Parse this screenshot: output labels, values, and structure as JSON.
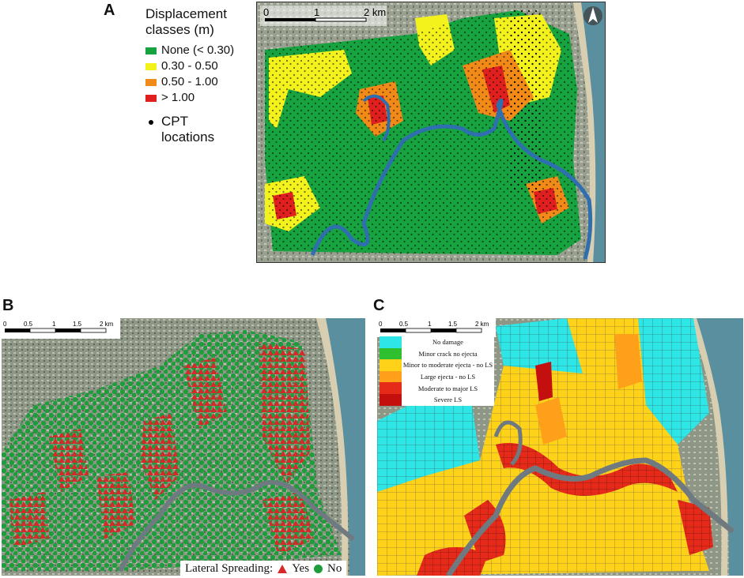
{
  "panels": {
    "a": {
      "letter": "A",
      "legend_title_line1": "Displacement",
      "legend_title_line2": "classes (m)",
      "classes": [
        {
          "label": "None (< 0.30)",
          "color": "#16a340"
        },
        {
          "label": "0.30 - 0.50",
          "color": "#f4f21c"
        },
        {
          "label": "0.50 - 1.00",
          "color": "#f28a17"
        },
        {
          "label": "> 1.00",
          "color": "#e0201e"
        }
      ],
      "cpt_label_line1": "CPT",
      "cpt_label_line2": "locations",
      "scale": {
        "t0": "0",
        "t1": "1",
        "t2": "2 km"
      }
    },
    "b": {
      "letter": "B",
      "scale": {
        "t0": "0",
        "t1": "0.5",
        "t2": "1",
        "t3": "1.5",
        "t4": "2 km"
      },
      "legend_label": "Lateral Spreading:",
      "yes_label": "Yes",
      "no_label": "No",
      "yes_color": "#d62a2a",
      "no_color": "#1f9c3c"
    },
    "c": {
      "letter": "C",
      "scale": {
        "t0": "0",
        "t1": "0.5",
        "t2": "1",
        "t3": "1.5",
        "t4": "2 km"
      },
      "classes": [
        {
          "label": "No damage",
          "color": "#2ee6e6"
        },
        {
          "label": "Minor crack no ejecta",
          "color": "#2fbf2f"
        },
        {
          "label": "Minor to moderate ejecta - no LS",
          "color": "#ffd21a"
        },
        {
          "label": "Large ejecta - no LS",
          "color": "#ffa01a"
        },
        {
          "label": "Moderate to major LS",
          "color": "#e62a1a"
        },
        {
          "label": "Severe LS",
          "color": "#c40f0f"
        }
      ]
    }
  },
  "colors": {
    "river": "#2f6fb0",
    "sea": "#5a8fa0"
  }
}
